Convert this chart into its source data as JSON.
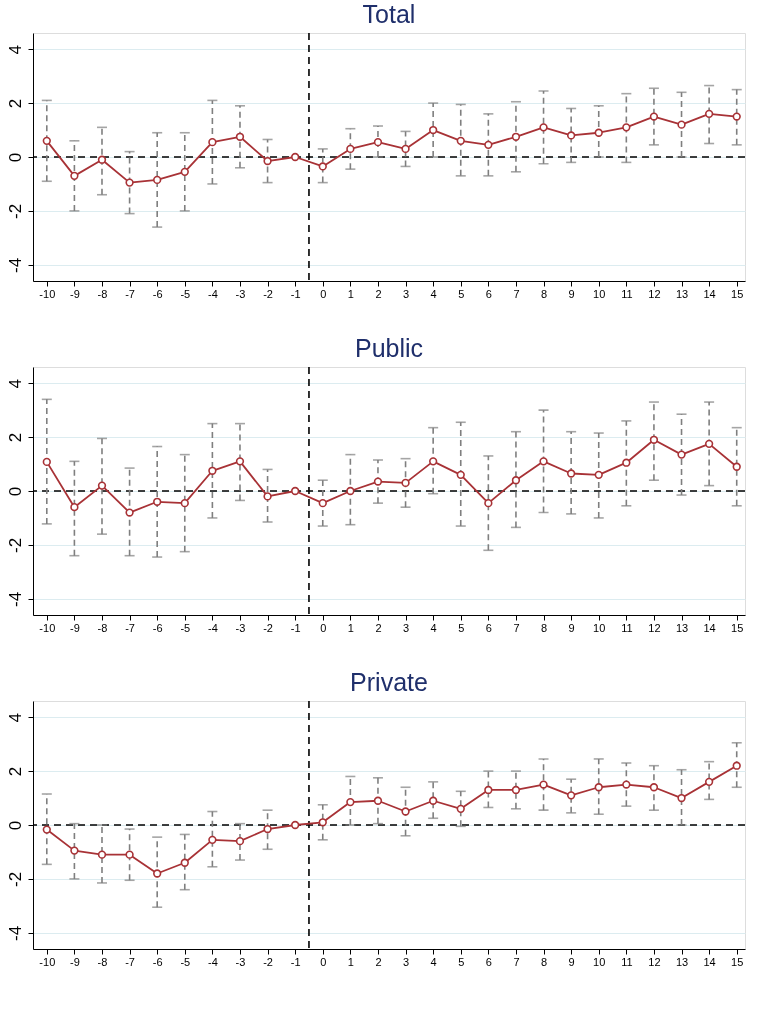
{
  "chart_data": [
    {
      "type": "line",
      "title": "Total",
      "x": [
        -10,
        -9,
        -8,
        -7,
        -6,
        -5,
        -4,
        -3,
        -2,
        -1,
        0,
        1,
        2,
        3,
        4,
        5,
        6,
        7,
        8,
        9,
        10,
        11,
        12,
        13,
        14,
        15
      ],
      "xlim": [
        -10.5,
        15.3
      ],
      "xticks": [
        -10,
        -9,
        -8,
        -7,
        -6,
        -5,
        -4,
        -3,
        -2,
        -1,
        0,
        1,
        2,
        3,
        4,
        5,
        6,
        7,
        8,
        9,
        10,
        11,
        12,
        13,
        14,
        15
      ],
      "ylim": [
        -4.6,
        4.6
      ],
      "yticks": [
        -4,
        -2,
        0,
        2,
        4
      ],
      "grid": "y",
      "marker": "circle",
      "line_style": "solid",
      "legend": false,
      "series": [
        {
          "color": "#a83236",
          "values": [
            0.6,
            -0.7,
            -0.1,
            -0.95,
            -0.85,
            -0.55,
            0.55,
            0.75,
            -0.15,
            0,
            -0.35,
            0.3,
            0.55,
            0.3,
            1.0,
            0.6,
            0.45,
            0.75,
            1.1,
            0.8,
            0.9,
            1.1,
            1.5,
            1.2,
            1.6,
            1.5
          ],
          "errors": [
            [
              -0.9,
              2.1
            ],
            [
              -2.0,
              0.6
            ],
            [
              -1.4,
              1.1
            ],
            [
              -2.1,
              0.2
            ],
            [
              -2.6,
              0.9
            ],
            [
              -2.0,
              0.9
            ],
            [
              -1.0,
              2.1
            ],
            [
              -0.4,
              1.9
            ],
            [
              -0.95,
              0.65
            ],
            null,
            [
              -0.95,
              0.3
            ],
            [
              -0.45,
              1.05
            ],
            [
              0,
              1.15
            ],
            [
              -0.35,
              0.95
            ],
            [
              0,
              2.0
            ],
            [
              -0.7,
              1.95
            ],
            [
              -0.7,
              1.6
            ],
            [
              -0.55,
              2.05
            ],
            [
              -0.25,
              2.45
            ],
            [
              -0.2,
              1.8
            ],
            [
              0,
              1.9
            ],
            [
              -0.2,
              2.35
            ],
            [
              0.45,
              2.55
            ],
            [
              0,
              2.4
            ],
            [
              0.5,
              2.65
            ],
            [
              0.45,
              2.5
            ]
          ]
        }
      ],
      "ref_lines": [
        {
          "axis": "y",
          "value": 0,
          "line_style": "dashed",
          "color": "#000000"
        },
        {
          "axis": "x",
          "value": -0.5,
          "line_style": "dashed",
          "color": "#000000"
        }
      ]
    },
    {
      "type": "line",
      "title": "Public",
      "x": [
        -10,
        -9,
        -8,
        -7,
        -6,
        -5,
        -4,
        -3,
        -2,
        -1,
        0,
        1,
        2,
        3,
        4,
        5,
        6,
        7,
        8,
        9,
        10,
        11,
        12,
        13,
        14,
        15
      ],
      "xlim": [
        -10.5,
        15.3
      ],
      "xticks": [
        -10,
        -9,
        -8,
        -7,
        -6,
        -5,
        -4,
        -3,
        -2,
        -1,
        0,
        1,
        2,
        3,
        4,
        5,
        6,
        7,
        8,
        9,
        10,
        11,
        12,
        13,
        14,
        15
      ],
      "ylim": [
        -4.6,
        4.6
      ],
      "yticks": [
        -4,
        -2,
        0,
        2,
        4
      ],
      "grid": "y",
      "marker": "circle",
      "line_style": "solid",
      "legend": false,
      "series": [
        {
          "color": "#a83236",
          "values": [
            1.08,
            -0.6,
            0.2,
            -0.8,
            -0.4,
            -0.45,
            0.75,
            1.1,
            -0.2,
            0,
            -0.45,
            0,
            0.35,
            0.3,
            1.1,
            0.6,
            -0.45,
            0.4,
            1.1,
            0.65,
            0.6,
            1.05,
            1.9,
            1.35,
            1.75,
            0.9
          ],
          "errors": [
            [
              -1.22,
              3.4
            ],
            [
              -2.4,
              1.1
            ],
            [
              -1.6,
              1.95
            ],
            [
              -2.4,
              0.85
            ],
            [
              -2.45,
              1.65
            ],
            [
              -2.25,
              1.35
            ],
            [
              -1.0,
              2.5
            ],
            [
              -0.35,
              2.5
            ],
            [
              -1.15,
              0.8
            ],
            null,
            [
              -1.3,
              0.4
            ],
            [
              -1.25,
              1.35
            ],
            [
              -0.45,
              1.15
            ],
            [
              -0.6,
              1.2
            ],
            [
              -0.1,
              2.35
            ],
            [
              -1.3,
              2.55
            ],
            [
              -2.2,
              1.3
            ],
            [
              -1.35,
              2.2
            ],
            [
              -0.8,
              3.0
            ],
            [
              -0.85,
              2.2
            ],
            [
              -1.0,
              2.15
            ],
            [
              -0.55,
              2.6
            ],
            [
              0.4,
              3.3
            ],
            [
              -0.15,
              2.85
            ],
            [
              0.2,
              3.3
            ],
            [
              -0.55,
              2.35
            ]
          ]
        }
      ],
      "ref_lines": [
        {
          "axis": "y",
          "value": 0,
          "line_style": "dashed",
          "color": "#000000"
        },
        {
          "axis": "x",
          "value": -0.5,
          "line_style": "dashed",
          "color": "#000000"
        }
      ]
    },
    {
      "type": "line",
      "title": "Private",
      "x": [
        -10,
        -9,
        -8,
        -7,
        -6,
        -5,
        -4,
        -3,
        -2,
        -1,
        0,
        1,
        2,
        3,
        4,
        5,
        6,
        7,
        8,
        9,
        10,
        11,
        12,
        13,
        14,
        15
      ],
      "xlim": [
        -10.5,
        15.3
      ],
      "xticks": [
        -10,
        -9,
        -8,
        -7,
        -6,
        -5,
        -4,
        -3,
        -2,
        -1,
        0,
        1,
        2,
        3,
        4,
        5,
        6,
        7,
        8,
        9,
        10,
        11,
        12,
        13,
        14,
        15
      ],
      "ylim": [
        -4.6,
        4.6
      ],
      "yticks": [
        -4,
        -2,
        0,
        2,
        4
      ],
      "grid": "y",
      "marker": "circle",
      "line_style": "solid",
      "legend": false,
      "series": [
        {
          "color": "#a83236",
          "values": [
            -0.17,
            -0.95,
            -1.1,
            -1.1,
            -1.8,
            -1.4,
            -0.55,
            -0.6,
            -0.15,
            0,
            0.1,
            0.85,
            0.9,
            0.5,
            0.9,
            0.6,
            1.3,
            1.3,
            1.5,
            1.1,
            1.4,
            1.5,
            1.4,
            1.0,
            1.6,
            2.2
          ],
          "errors": [
            [
              -1.46,
              1.15
            ],
            [
              -2.0,
              0.05
            ],
            [
              -2.15,
              0
            ],
            [
              -2.05,
              -0.15
            ],
            [
              -3.05,
              -0.45
            ],
            [
              -2.4,
              -0.35
            ],
            [
              -1.55,
              0.5
            ],
            [
              -1.3,
              0.05
            ],
            [
              -0.9,
              0.55
            ],
            null,
            [
              -0.55,
              0.75
            ],
            [
              0,
              1.8
            ],
            [
              0.05,
              1.75
            ],
            [
              -0.4,
              1.4
            ],
            [
              0.25,
              1.6
            ],
            [
              -0.05,
              1.25
            ],
            [
              0.65,
              2.0
            ],
            [
              0.6,
              2.0
            ],
            [
              0.55,
              2.45
            ],
            [
              0.45,
              1.7
            ],
            [
              0.4,
              2.45
            ],
            [
              0.7,
              2.3
            ],
            [
              0.55,
              2.2
            ],
            [
              0,
              2.05
            ],
            [
              0.95,
              2.35
            ],
            [
              1.4,
              3.05
            ]
          ]
        }
      ],
      "ref_lines": [
        {
          "axis": "y",
          "value": 0,
          "line_style": "dashed",
          "color": "#000000"
        },
        {
          "axis": "x",
          "value": -0.5,
          "line_style": "dashed",
          "color": "#000000"
        }
      ]
    }
  ]
}
